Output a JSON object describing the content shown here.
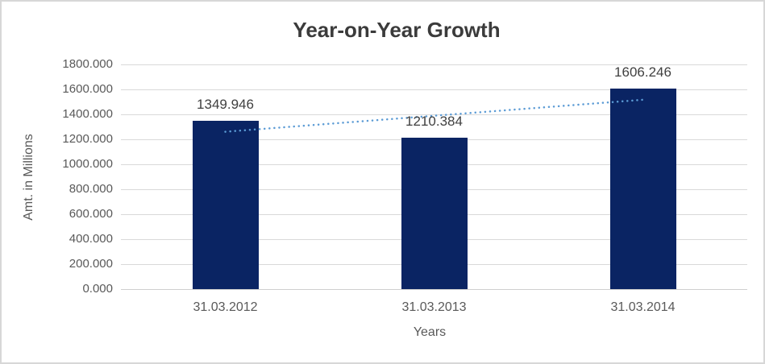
{
  "chart_data": {
    "type": "bar",
    "title": "Year-on-Year Growth",
    "xlabel": "Years",
    "ylabel": "Amt. in Millions",
    "categories": [
      "31.03.2012",
      "31.03.2013",
      "31.03.2014"
    ],
    "values": [
      1349.946,
      1210.384,
      1606.246
    ],
    "data_labels": [
      "1349.946",
      "1210.384",
      "1606.246"
    ],
    "ylim": [
      0,
      1800
    ],
    "ytick_step": 200,
    "ytick_labels": [
      "1800.000",
      "1600.000",
      "1400.000",
      "1200.000",
      "1000.000",
      "800.000",
      "600.000",
      "400.000",
      "200.000",
      "0.000"
    ],
    "grid": true,
    "legend": "none",
    "trendline": {
      "type": "linear",
      "style": "dotted",
      "series": "values"
    },
    "colors": {
      "bar": "#0a2463",
      "trendline": "#5b9bd5",
      "gridline": "#d9d9d9",
      "axis_line": "#cfcfcf",
      "title_text": "#3b3b3b",
      "tick_text": "#595959",
      "data_label_text": "#404040",
      "background": "#ffffff",
      "frame_border": "#d7d7d7"
    }
  }
}
